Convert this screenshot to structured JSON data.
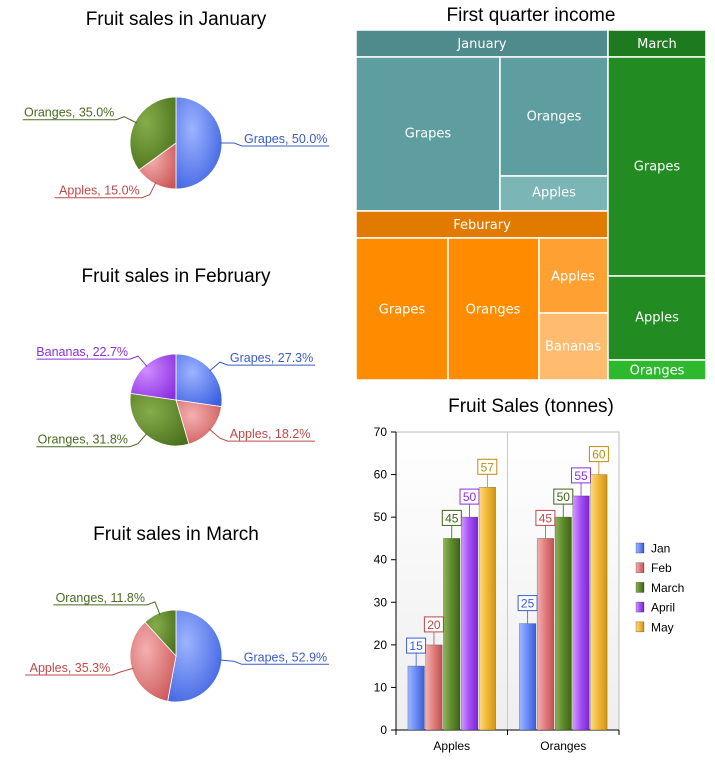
{
  "colors": {
    "Grapes": "#5b7ef0",
    "Apples": "#e07a7a",
    "Oranges": "#5f8a2a",
    "Bananas": "#a04af0",
    "Jan": "#5b7ef0",
    "Feb": "#e07a7a",
    "March": "#5f8a2a",
    "April": "#a04af0",
    "May": "#f0b830"
  },
  "chart_data": [
    {
      "type": "pie",
      "title": "Fruit sales in January",
      "slices": [
        {
          "label": "Grapes",
          "value": 50.0,
          "display": "Grapes, 50.0%"
        },
        {
          "label": "Apples",
          "value": 15.0,
          "display": "Apples, 15.0%"
        },
        {
          "label": "Oranges",
          "value": 35.0,
          "display": "Oranges, 35.0%"
        }
      ]
    },
    {
      "type": "pie",
      "title": "Fruit sales in February",
      "slices": [
        {
          "label": "Grapes",
          "value": 27.3,
          "display": "Grapes, 27.3%"
        },
        {
          "label": "Apples",
          "value": 18.2,
          "display": "Apples, 18.2%"
        },
        {
          "label": "Oranges",
          "value": 31.8,
          "display": "Oranges, 31.8%"
        },
        {
          "label": "Bananas",
          "value": 22.7,
          "display": "Bananas, 22.7%"
        }
      ]
    },
    {
      "type": "pie",
      "title": "Fruit sales in March",
      "slices": [
        {
          "label": "Grapes",
          "value": 52.9,
          "display": "Grapes, 52.9%"
        },
        {
          "label": "Apples",
          "value": 35.3,
          "display": "Apples, 35.3%"
        },
        {
          "label": "Oranges",
          "value": 11.8,
          "display": "Oranges, 11.8%"
        }
      ]
    },
    {
      "type": "treemap",
      "title": "First quarter income",
      "groups": [
        {
          "name": "January",
          "color": "#5f9ea0",
          "header_color": "#4f8a8d",
          "children": [
            {
              "name": "Grapes"
            },
            {
              "name": "Oranges"
            },
            {
              "name": "Apples"
            }
          ]
        },
        {
          "name": "Feburary",
          "color": "#ff8c00",
          "header_color": "#e07b00",
          "children": [
            {
              "name": "Grapes"
            },
            {
              "name": "Oranges"
            },
            {
              "name": "Apples"
            },
            {
              "name": "Bananas"
            }
          ]
        },
        {
          "name": "March",
          "color": "#228b22",
          "header_color": "#1e7a1e",
          "children": [
            {
              "name": "Grapes"
            },
            {
              "name": "Apples"
            },
            {
              "name": "Oranges"
            }
          ]
        }
      ]
    },
    {
      "type": "bar",
      "title": "Fruit Sales (tonnes)",
      "categories": [
        "Apples",
        "Oranges"
      ],
      "series": [
        {
          "name": "Jan",
          "values": [
            15,
            25
          ]
        },
        {
          "name": "Feb",
          "values": [
            20,
            45
          ]
        },
        {
          "name": "March",
          "values": [
            45,
            50
          ]
        },
        {
          "name": "April",
          "values": [
            50,
            55
          ]
        },
        {
          "name": "May",
          "values": [
            57,
            60
          ]
        }
      ],
      "ylim": [
        0,
        70
      ],
      "yticks": [
        0,
        10,
        20,
        30,
        40,
        50,
        60,
        70
      ],
      "legend": "right"
    }
  ]
}
